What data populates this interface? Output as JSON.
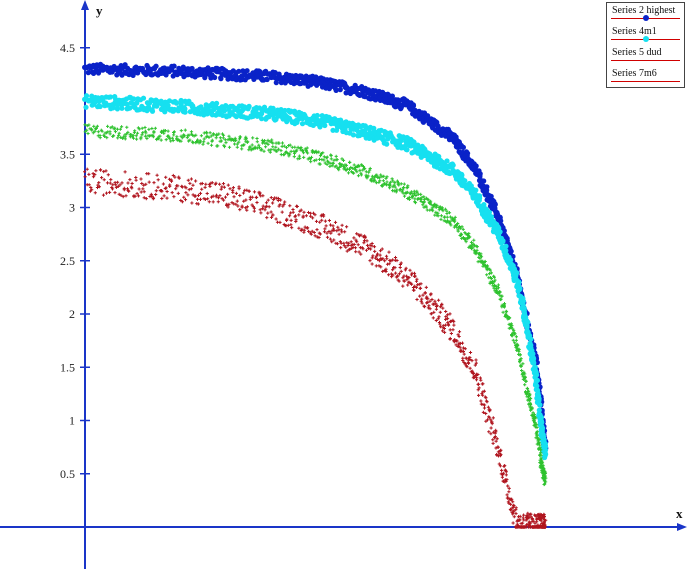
{
  "chart_data": {
    "type": "scatter",
    "xlabel": "x",
    "ylabel": "y",
    "ylim": [
      -0.04,
      4.95
    ],
    "xlim": [
      -0.16,
      1.13
    ],
    "y_ticks": [
      "0.5",
      "1",
      "1.5",
      "2",
      "2.5",
      "3",
      "3.5",
      "4.5"
    ],
    "legend_position": "top-right",
    "grid": false,
    "series": [
      {
        "name": "Series 2 highest",
        "color": "#0a22c8",
        "marker": "dot",
        "curve": [
          [
            0.0,
            4.3
          ],
          [
            0.2,
            4.28
          ],
          [
            0.4,
            4.23
          ],
          [
            0.5,
            4.18
          ],
          [
            0.6,
            4.1
          ],
          [
            0.7,
            3.96
          ],
          [
            0.8,
            3.65
          ],
          [
            0.85,
            3.35
          ],
          [
            0.9,
            2.9
          ],
          [
            0.94,
            2.35
          ],
          [
            0.96,
            1.95
          ],
          [
            0.98,
            1.55
          ],
          [
            0.99,
            1.2
          ],
          [
            1.0,
            0.75
          ]
        ]
      },
      {
        "name": "Series 4m1",
        "color": "#16e0f0",
        "marker": "dot",
        "curve": [
          [
            0.0,
            4.0
          ],
          [
            0.2,
            3.95
          ],
          [
            0.4,
            3.88
          ],
          [
            0.5,
            3.82
          ],
          [
            0.6,
            3.72
          ],
          [
            0.7,
            3.6
          ],
          [
            0.8,
            3.35
          ],
          [
            0.85,
            3.1
          ],
          [
            0.9,
            2.75
          ],
          [
            0.94,
            2.3
          ],
          [
            0.96,
            1.9
          ],
          [
            0.98,
            1.4
          ],
          [
            0.99,
            1.0
          ],
          [
            1.0,
            0.7
          ]
        ]
      },
      {
        "name": "Series 5 dud",
        "color": "#2ec22e",
        "marker": "plus",
        "curve": [
          [
            0.0,
            3.72
          ],
          [
            0.2,
            3.68
          ],
          [
            0.4,
            3.58
          ],
          [
            0.5,
            3.48
          ],
          [
            0.6,
            3.35
          ],
          [
            0.7,
            3.15
          ],
          [
            0.8,
            2.88
          ],
          [
            0.85,
            2.6
          ],
          [
            0.9,
            2.2
          ],
          [
            0.94,
            1.7
          ],
          [
            0.96,
            1.3
          ],
          [
            0.98,
            0.95
          ],
          [
            0.99,
            0.65
          ],
          [
            1.0,
            0.45
          ]
        ]
      },
      {
        "name": "Series 7m6",
        "color": "#b0141e",
        "marker": "plus",
        "curve": [
          [
            0.0,
            3.25
          ],
          [
            0.2,
            3.18
          ],
          [
            0.3,
            3.12
          ],
          [
            0.4,
            3.0
          ],
          [
            0.5,
            2.85
          ],
          [
            0.6,
            2.65
          ],
          [
            0.7,
            2.35
          ],
          [
            0.8,
            1.85
          ],
          [
            0.85,
            1.45
          ],
          [
            0.88,
            1.0
          ],
          [
            0.9,
            0.7
          ],
          [
            0.92,
            0.35
          ],
          [
            0.94,
            0.02
          ],
          [
            1.0,
            0.0
          ]
        ]
      }
    ]
  }
}
